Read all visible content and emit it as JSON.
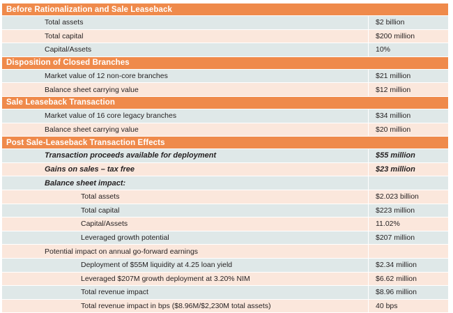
{
  "sections": [
    {
      "title": "Before Rationalization and Sale Leaseback",
      "rows": [
        {
          "label": "Total assets",
          "value": "$2 billion",
          "indent": 1
        },
        {
          "label": "Total capital",
          "value": "$200 million",
          "indent": 1
        },
        {
          "label": "Capital/Assets",
          "value": "10%",
          "indent": 1
        }
      ]
    },
    {
      "title": "Disposition of Closed Branches",
      "rows": [
        {
          "label": "Market value of 12 non-core branches",
          "value": "$21 million",
          "indent": 1
        },
        {
          "label": "Balance sheet carrying value",
          "value": "$12 million",
          "indent": 1
        }
      ]
    },
    {
      "title": "Sale Leaseback Transaction",
      "rows": [
        {
          "label": "Market value of 16 core legacy branches",
          "value": "$34 million",
          "indent": 1
        },
        {
          "label": "Balance sheet carrying value",
          "value": "$20 million",
          "indent": 1
        }
      ]
    },
    {
      "title": "Post Sale-Leaseback Transaction Effects",
      "rows": [
        {
          "label": "Transaction proceeds available for deployment",
          "value": "$55 million",
          "indent": 1,
          "emphasis": true
        },
        {
          "label": "Gains on sales – tax free",
          "value": "$23 million",
          "indent": 1,
          "emphasis": true
        },
        {
          "label": "Balance sheet impact:",
          "value": "",
          "indent": 1,
          "emphasis": true
        },
        {
          "label": "Total assets",
          "value": "$2.023 billion",
          "indent": 2
        },
        {
          "label": "Total capital",
          "value": "$223 million",
          "indent": 2
        },
        {
          "label": "Capital/Assets",
          "value": "11.02%",
          "indent": 2
        },
        {
          "label": "Leveraged growth potential",
          "value": "$207 million",
          "indent": 2
        },
        {
          "label": "Potential impact on annual go-forward earnings",
          "value": "",
          "indent": 1
        },
        {
          "label": "Deployment of $55M liquidity at 4.25 loan yield",
          "value": "$2.34 million",
          "indent": 2
        },
        {
          "label": "Leveraged $207M growth deployment at 3.20% NIM",
          "value": "$6.62 million",
          "indent": 2
        },
        {
          "label": "Total revenue impact",
          "value": "$8.96 million",
          "indent": 2
        },
        {
          "label": "Total revenue impact in bps ($8.96M/$2,230M total assets)",
          "value": "40 bps",
          "indent": 2
        }
      ]
    }
  ]
}
